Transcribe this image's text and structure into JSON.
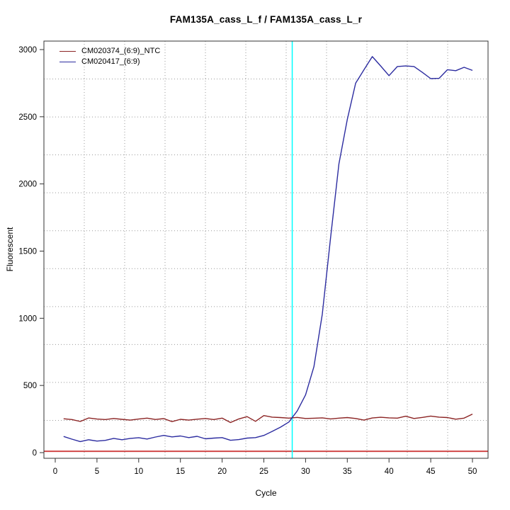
{
  "chart_data": {
    "type": "line",
    "title": "FAM135A_cass_L_f / FAM135A_cass_L_r",
    "xlabel": "Cycle",
    "ylabel": "Fluorescent",
    "xlim": [
      -1,
      52
    ],
    "ylim": [
      -55,
      3100
    ],
    "x_ticks": [
      0,
      5,
      10,
      15,
      20,
      25,
      30,
      35,
      40,
      45,
      50
    ],
    "y_ticks": [
      0,
      500,
      1000,
      1500,
      2000,
      2500,
      3000
    ],
    "grid": {
      "style": "dotted",
      "color": "#9a9a9a",
      "cells": 11
    },
    "legend_position": "top-left",
    "x": [
      1,
      2,
      3,
      4,
      5,
      6,
      7,
      8,
      9,
      10,
      11,
      12,
      13,
      14,
      15,
      16,
      17,
      18,
      19,
      20,
      21,
      22,
      23,
      24,
      25,
      26,
      27,
      28,
      29,
      30,
      31,
      32,
      33,
      34,
      35,
      36,
      37,
      38,
      39,
      40,
      41,
      42,
      43,
      44,
      45,
      46,
      47,
      48,
      49,
      50
    ],
    "series": [
      {
        "name": "CM020374_(6:9)_NTC",
        "color": "#8b2323",
        "values": [
          252,
          246,
          232,
          258,
          250,
          246,
          254,
          248,
          242,
          250,
          257,
          247,
          253,
          231,
          248,
          242,
          249,
          254,
          246,
          257,
          224,
          251,
          268,
          233,
          276,
          264,
          261,
          257,
          262,
          254,
          256,
          259,
          251,
          257,
          261,
          254,
          242,
          258,
          263,
          259,
          257,
          271,
          254,
          262,
          272,
          264,
          261,
          249,
          257,
          287
        ]
      },
      {
        "name": "CM020417_(6:9)",
        "color": "#2c2ca0",
        "values": [
          120,
          100,
          82,
          96,
          86,
          91,
          106,
          96,
          106,
          111,
          101,
          116,
          128,
          117,
          124,
          112,
          121,
          103,
          108,
          112,
          92,
          97,
          108,
          112,
          128,
          158,
          190,
          228,
          310,
          430,
          640,
          1030,
          1600,
          2150,
          2480,
          2750,
          2850,
          2948,
          2878,
          2806,
          2874,
          2878,
          2874,
          2830,
          2784,
          2786,
          2850,
          2843,
          2868,
          2845
        ]
      }
    ],
    "annotations": {
      "ct_vline": {
        "x": 28.4,
        "color": "#00ffff"
      },
      "threshold_hline": {
        "y": 10,
        "color": "#d14848"
      }
    }
  }
}
